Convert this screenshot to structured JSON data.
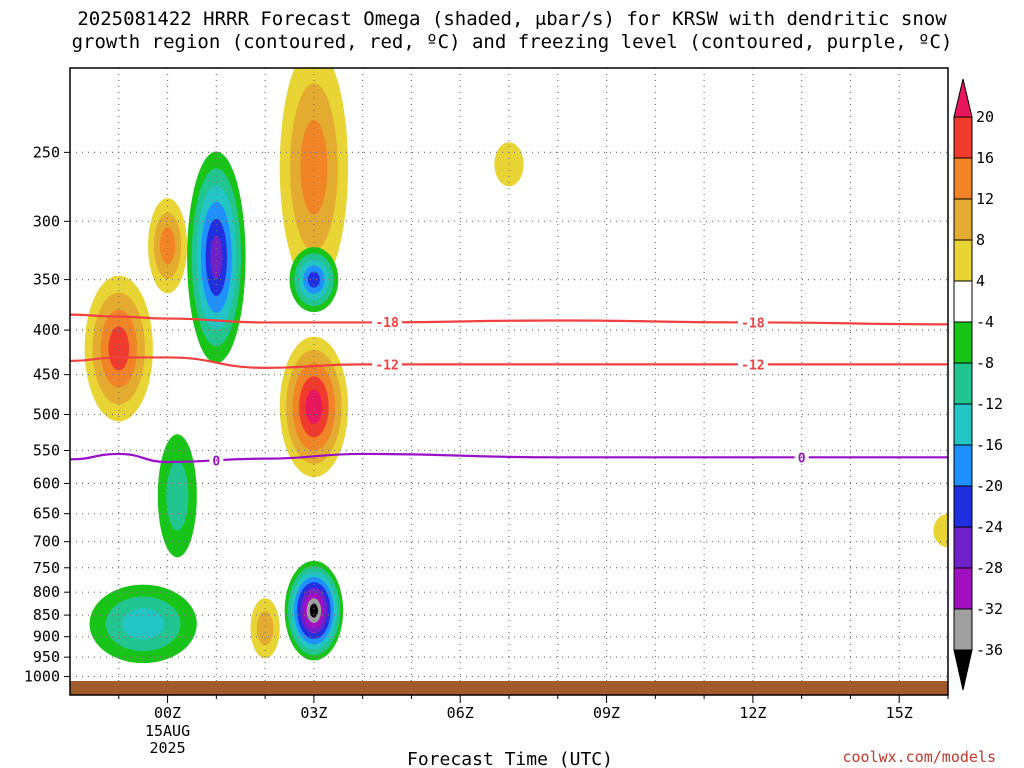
{
  "title": {
    "line1": "2025081422 HRRR Forecast Omega (shaded, μbar/s) for KRSW with dendritic snow",
    "line2": "growth region (contoured, red, ºC) and freezing level (contoured, purple, ºC)"
  },
  "credit": "coolwx.com/models",
  "chart_data": {
    "type": "heatmap",
    "xlabel": "Forecast Time (UTC)",
    "x_ticks": [
      "00Z",
      "03Z",
      "06Z",
      "09Z",
      "12Z",
      "15Z"
    ],
    "x_date_label": [
      "15AUG",
      "2025"
    ],
    "y_ticks": [
      250,
      300,
      350,
      400,
      450,
      500,
      550,
      600,
      650,
      700,
      750,
      800,
      850,
      900,
      950,
      1000
    ],
    "y_log_scale": true,
    "y_inverted": true,
    "xlim": [
      -2,
      16
    ],
    "ylim": [
      1050,
      200
    ],
    "grid": true,
    "colorbar": {
      "labels": [
        20,
        16,
        12,
        8,
        4,
        -4,
        -8,
        -12,
        -16,
        -20,
        -24,
        -28,
        -32,
        -36
      ],
      "colors": [
        "#e8175d",
        "#f03a2e",
        "#f08427",
        "#e3ab30",
        "#e8d434",
        "#ffffff",
        "#17c417",
        "#22c48f",
        "#22c4c4",
        "#1e90ff",
        "#2030e0",
        "#7020c8",
        "#a010c0",
        "#a0a0a0",
        "#000000"
      ]
    },
    "contours": [
      {
        "type": "dendritic",
        "value": -18,
        "label": "-18",
        "color": "#f04040",
        "levels": [
          384,
          386,
          388,
          392,
          392,
          390,
          392,
          394
        ]
      },
      {
        "type": "dendritic",
        "value": -12,
        "label": "-12",
        "color": "#f04040",
        "levels": [
          434,
          430,
          430,
          442,
          438,
          438,
          438,
          438
        ]
      },
      {
        "type": "freezing",
        "value": 0,
        "label": "0",
        "color": "#9a10c8",
        "levels": [
          563,
          555,
          567,
          562,
          555,
          560,
          560,
          560
        ]
      }
    ],
    "contour_label_hours": [
      4.5,
      12
    ],
    "freezing_label_hours": [
      1,
      13
    ],
    "contour_hours": [
      -2,
      -1,
      0,
      2,
      4,
      8,
      12,
      16
    ],
    "omega_cells": [
      {
        "x": -1.0,
        "p": 420,
        "rx": 0.7,
        "rp": 80,
        "levels": [
          4,
          8,
          12,
          16
        ]
      },
      {
        "x": 0.0,
        "p": 320,
        "rx": 0.4,
        "rp": 40,
        "levels": [
          4,
          8,
          12
        ]
      },
      {
        "x": 1.0,
        "p": 330,
        "rx": 0.6,
        "rp": 90,
        "levels": [
          -4,
          -8,
          -12,
          -16,
          -20,
          -24
        ]
      },
      {
        "x": 3.0,
        "p": 260,
        "rx": 0.7,
        "rp": 80,
        "levels": [
          4,
          8,
          12
        ]
      },
      {
        "x": 3.0,
        "p": 350,
        "rx": 0.5,
        "rp": 30,
        "levels": [
          -4,
          -8,
          -12,
          -16,
          -20
        ]
      },
      {
        "x": 3.0,
        "p": 490,
        "rx": 0.7,
        "rp": 90,
        "levels": [
          4,
          8,
          12,
          16,
          20
        ]
      },
      {
        "x": 0.2,
        "p": 620,
        "rx": 0.4,
        "rp": 100,
        "levels": [
          -4,
          -8
        ]
      },
      {
        "x": -0.5,
        "p": 870,
        "rx": 1.1,
        "rp": 90,
        "levels": [
          -4,
          -8,
          -12
        ]
      },
      {
        "x": 3.0,
        "p": 840,
        "rx": 0.6,
        "rp": 110,
        "levels": [
          -4,
          -8,
          -12,
          -16,
          -20,
          -24,
          -28,
          -32,
          -36
        ]
      },
      {
        "x": 2.0,
        "p": 880,
        "rx": 0.3,
        "rp": 70,
        "levels": [
          4,
          8
        ]
      },
      {
        "x": 7.0,
        "p": 258,
        "rx": 0.3,
        "rp": 15,
        "levels": [
          4
        ]
      },
      {
        "x": 16.0,
        "p": 680,
        "rx": 0.3,
        "rp": 30,
        "levels": [
          4
        ]
      }
    ]
  }
}
